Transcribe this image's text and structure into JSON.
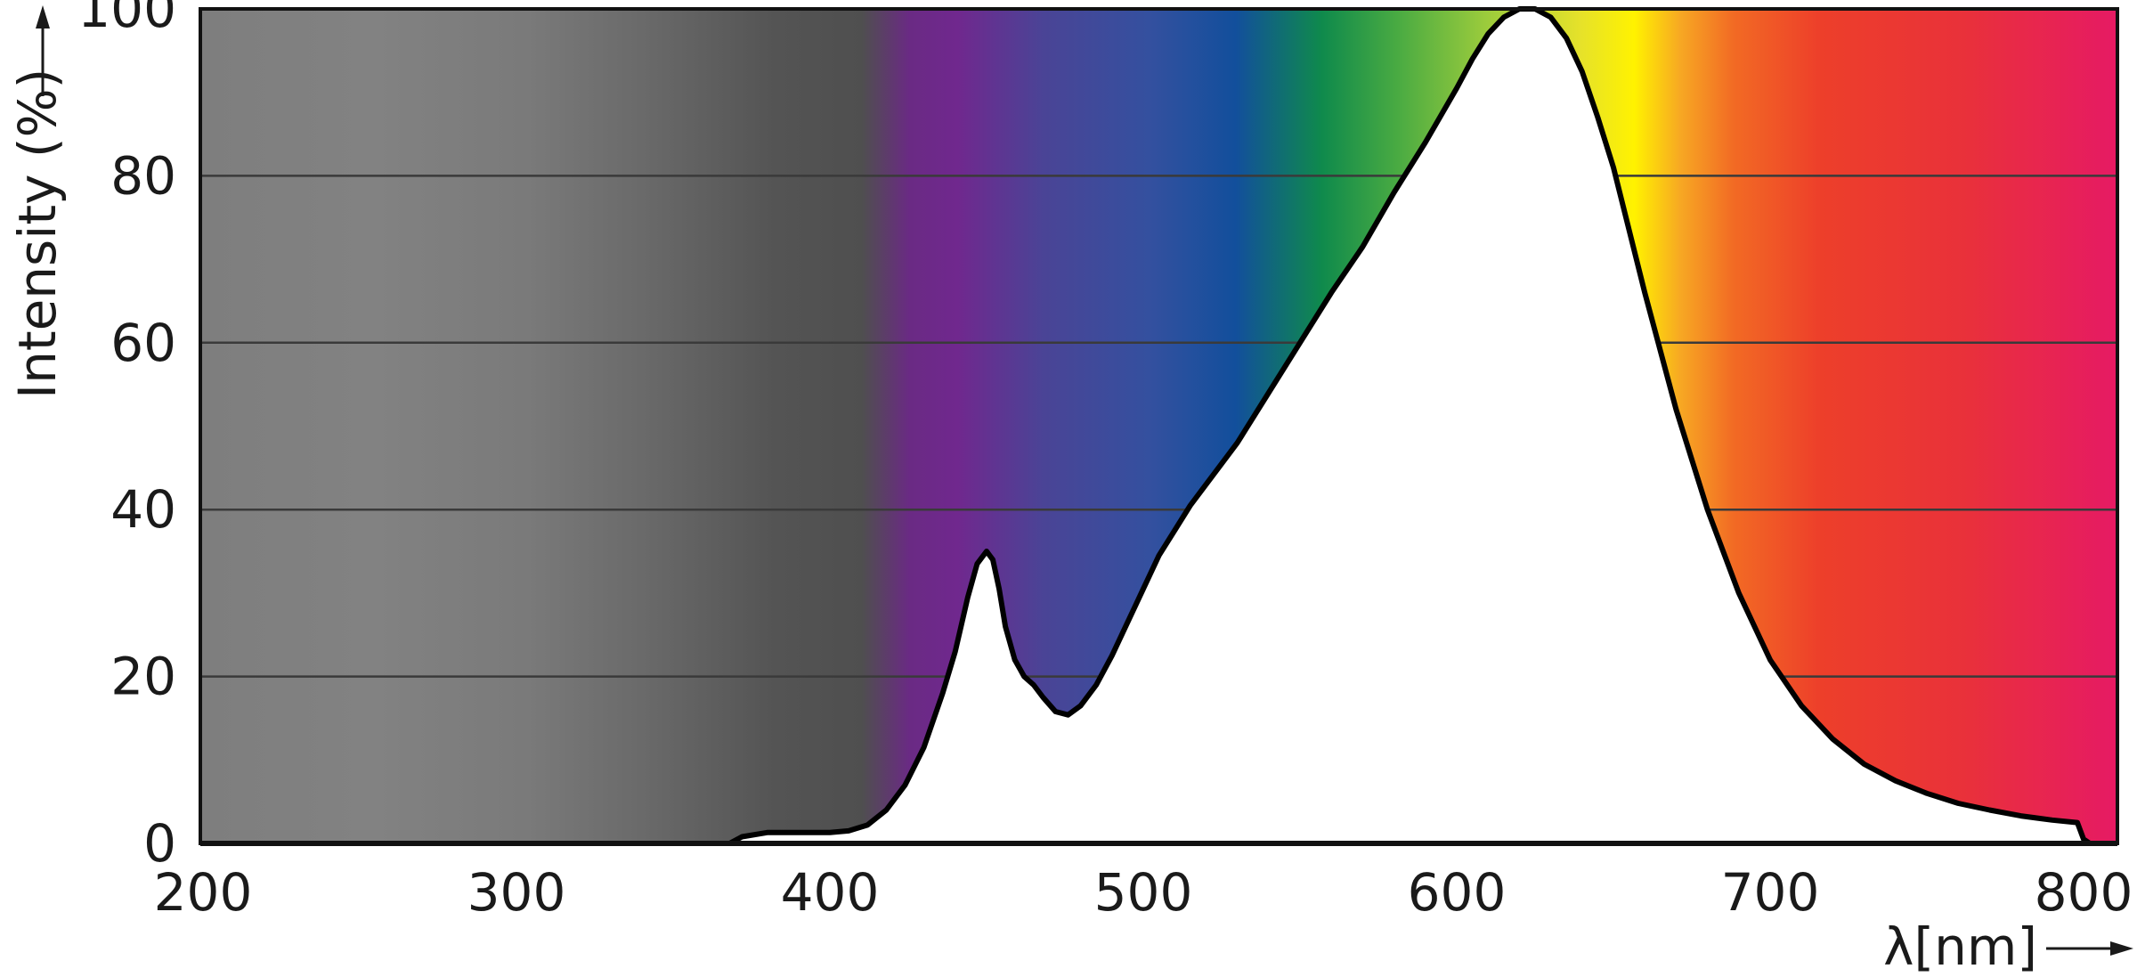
{
  "chart_data": {
    "type": "area",
    "title": "",
    "xlabel": "λ[nm]",
    "ylabel": "Intensity (%)",
    "xlim": [
      200,
      810
    ],
    "ylim": [
      0,
      100
    ],
    "x_ticks": [
      200,
      300,
      400,
      500,
      600,
      700,
      800
    ],
    "y_ticks": [
      0,
      20,
      40,
      60,
      80,
      100
    ],
    "grid": "horizontal",
    "background": "visible spectrum gradient (grey below ~370 nm)",
    "series": [
      {
        "x": [
          368,
          372,
          380,
          390,
          400,
          406,
          412,
          418,
          424,
          430,
          436,
          440,
          444,
          447,
          450,
          452,
          454,
          456,
          459,
          462,
          465,
          468,
          472,
          476,
          480,
          485,
          490,
          495,
          500,
          505,
          510,
          515,
          520,
          530,
          540,
          550,
          560,
          570,
          580,
          590,
          600,
          605,
          610,
          615,
          620,
          625,
          630,
          635,
          640,
          645,
          650,
          655,
          660,
          670,
          680,
          690,
          700,
          710,
          720,
          730,
          740,
          750,
          760,
          770,
          780,
          790,
          798,
          800,
          802
        ],
        "y": [
          0,
          0.8,
          1.3,
          1.3,
          1.3,
          1.5,
          2.2,
          4,
          7,
          11.5,
          18,
          23,
          29.5,
          33.5,
          35,
          34,
          30.5,
          26,
          22,
          20,
          19,
          17.5,
          15.8,
          15.4,
          16.5,
          19,
          22.5,
          26.5,
          30.5,
          34.5,
          37.5,
          40.5,
          43,
          48,
          54,
          60,
          66,
          71.5,
          78,
          84,
          90.5,
          94,
          97,
          99,
          100,
          100,
          99,
          96.5,
          92.5,
          87,
          81,
          73.5,
          66,
          52,
          40,
          30,
          22,
          16.5,
          12.5,
          9.5,
          7.5,
          6,
          4.8,
          4,
          3.3,
          2.8,
          2.5,
          0.5,
          0
        ]
      }
    ]
  }
}
